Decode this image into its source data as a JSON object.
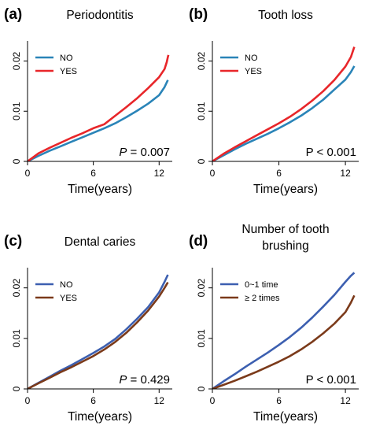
{
  "chart_data": [
    {
      "panel_label": "(a)",
      "title_lines": [
        "Periodontitis"
      ],
      "type": "line",
      "xlabel": "Time(years)",
      "ylabel": "",
      "xlim": [
        0,
        13.2
      ],
      "ylim": [
        0,
        0.024
      ],
      "xticks": [
        0,
        6,
        12
      ],
      "yticks": [
        0,
        0.01,
        0.02
      ],
      "ytick_labels": [
        "0",
        "0.01",
        "0.02"
      ],
      "legend_position": "top-left",
      "p_prefix": "P",
      "p_text": " = 0.007",
      "series": [
        {
          "name": "NO",
          "color": "#2a84b8",
          "x": [
            0,
            1,
            2,
            3,
            4,
            5,
            6,
            7,
            8,
            9,
            10,
            11,
            12,
            12.5,
            12.8
          ],
          "y": [
            0,
            0.0011,
            0.0021,
            0.003,
            0.0039,
            0.0048,
            0.0057,
            0.0066,
            0.0076,
            0.0088,
            0.0101,
            0.0115,
            0.0132,
            0.0148,
            0.0162
          ]
        },
        {
          "name": "YES",
          "color": "#e8262a",
          "x": [
            0,
            1,
            2,
            3,
            4,
            5,
            6,
            7,
            8,
            9,
            10,
            11,
            12,
            12.5,
            12.7,
            12.8,
            12.85
          ],
          "y": [
            0,
            0.0016,
            0.0027,
            0.0037,
            0.0047,
            0.0056,
            0.0066,
            0.0074,
            0.0091,
            0.0108,
            0.0126,
            0.0146,
            0.0168,
            0.0184,
            0.0198,
            0.0208,
            0.0212
          ]
        }
      ]
    },
    {
      "panel_label": "(b)",
      "title_lines": [
        "Tooth loss"
      ],
      "type": "line",
      "xlabel": "Time(years)",
      "ylabel": "",
      "xlim": [
        0,
        13.2
      ],
      "ylim": [
        0,
        0.024
      ],
      "xticks": [
        0,
        6,
        12
      ],
      "yticks": [
        0,
        0.01,
        0.02
      ],
      "ytick_labels": [
        "0",
        "0.01",
        "0.02"
      ],
      "legend_position": "top-left",
      "p_prefix": "",
      "p_text": "P < 0.001",
      "series": [
        {
          "name": "NO",
          "color": "#2a84b8",
          "x": [
            0,
            1,
            2,
            3,
            4,
            5,
            6,
            7,
            8,
            9,
            10,
            11,
            12,
            12.5,
            12.8
          ],
          "y": [
            0,
            0.0012,
            0.0024,
            0.0035,
            0.0045,
            0.0055,
            0.0066,
            0.0078,
            0.0091,
            0.0106,
            0.0123,
            0.0143,
            0.0163,
            0.0178,
            0.019
          ]
        },
        {
          "name": "YES",
          "color": "#e8262a",
          "x": [
            0,
            1,
            2,
            3,
            4,
            5,
            6,
            7,
            8,
            9,
            10,
            11,
            12,
            12.5,
            12.8
          ],
          "y": [
            0,
            0.0015,
            0.0028,
            0.004,
            0.0052,
            0.0064,
            0.0076,
            0.0089,
            0.0104,
            0.0121,
            0.014,
            0.0162,
            0.0189,
            0.0208,
            0.0228
          ]
        }
      ]
    },
    {
      "panel_label": "(c)",
      "title_lines": [
        "Dental caries"
      ],
      "type": "line",
      "xlabel": "Time(years)",
      "ylabel": "",
      "xlim": [
        0,
        13.2
      ],
      "ylim": [
        0,
        0.024
      ],
      "xticks": [
        0,
        6,
        12
      ],
      "yticks": [
        0,
        0.01,
        0.02
      ],
      "ytick_labels": [
        "0",
        "0.01",
        "0.02"
      ],
      "legend_position": "top-left",
      "p_prefix": "P",
      "p_text": " = 0.429",
      "series": [
        {
          "name": "NO",
          "color": "#3c5fb0",
          "x": [
            0,
            1,
            2,
            3,
            4,
            5,
            6,
            7,
            8,
            9,
            10,
            11,
            12,
            12.5,
            12.8
          ],
          "y": [
            0,
            0.0012,
            0.0024,
            0.0036,
            0.0047,
            0.0059,
            0.0071,
            0.0084,
            0.0099,
            0.0118,
            0.0139,
            0.0162,
            0.0191,
            0.0212,
            0.0226
          ]
        },
        {
          "name": "YES",
          "color": "#7b3a1a",
          "x": [
            0,
            1,
            2,
            3,
            4,
            5,
            6,
            7,
            8,
            9,
            10,
            11,
            12,
            12.5,
            12.8
          ],
          "y": [
            0,
            0.0011,
            0.0022,
            0.0033,
            0.0043,
            0.0054,
            0.0065,
            0.0078,
            0.0093,
            0.0111,
            0.0132,
            0.0155,
            0.0183,
            0.02,
            0.0211
          ]
        }
      ]
    },
    {
      "panel_label": "(d)",
      "title_lines": [
        "Number of tooth",
        "brushing"
      ],
      "type": "line",
      "xlabel": "Time(years)",
      "ylabel": "",
      "xlim": [
        0,
        13.2
      ],
      "ylim": [
        0,
        0.024
      ],
      "xticks": [
        0,
        6,
        12
      ],
      "yticks": [
        0,
        0.01,
        0.02
      ],
      "ytick_labels": [
        "0",
        "0.01",
        "0.02"
      ],
      "legend_position": "top-left",
      "p_prefix": "",
      "p_text": "P < 0.001",
      "series": [
        {
          "name": "0~1 time",
          "color": "#3c5fb0",
          "x": [
            0,
            1,
            2,
            3,
            4,
            5,
            6,
            7,
            8,
            9,
            10,
            11,
            12,
            12.5,
            12.8
          ],
          "y": [
            0,
            0.0015,
            0.0029,
            0.0044,
            0.0058,
            0.0072,
            0.0087,
            0.0103,
            0.0121,
            0.0141,
            0.0163,
            0.0186,
            0.0212,
            0.0224,
            0.023
          ]
        },
        {
          "name": "≥ 2 times",
          "color": "#7b3a1a",
          "x": [
            0,
            1,
            2,
            3,
            4,
            5,
            6,
            7,
            8,
            9,
            10,
            11,
            12,
            12.5,
            12.8
          ],
          "y": [
            0,
            0.0008,
            0.0016,
            0.0025,
            0.0034,
            0.0044,
            0.0054,
            0.0065,
            0.0078,
            0.0093,
            0.011,
            0.0129,
            0.0152,
            0.0171,
            0.0185
          ]
        }
      ]
    }
  ]
}
